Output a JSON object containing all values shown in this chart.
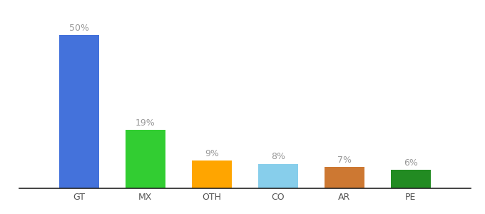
{
  "categories": [
    "GT",
    "MX",
    "OTH",
    "CO",
    "AR",
    "PE"
  ],
  "values": [
    50,
    19,
    9,
    8,
    7,
    6
  ],
  "labels": [
    "50%",
    "19%",
    "9%",
    "8%",
    "7%",
    "6%"
  ],
  "bar_colors": [
    "#4472DB",
    "#32CD32",
    "#FFA500",
    "#87CEEB",
    "#CD7832",
    "#228B22"
  ],
  "background_color": "#ffffff",
  "label_color": "#999999",
  "label_fontsize": 9,
  "tick_fontsize": 9,
  "bar_width": 0.6,
  "ylim": [
    0,
    58
  ]
}
